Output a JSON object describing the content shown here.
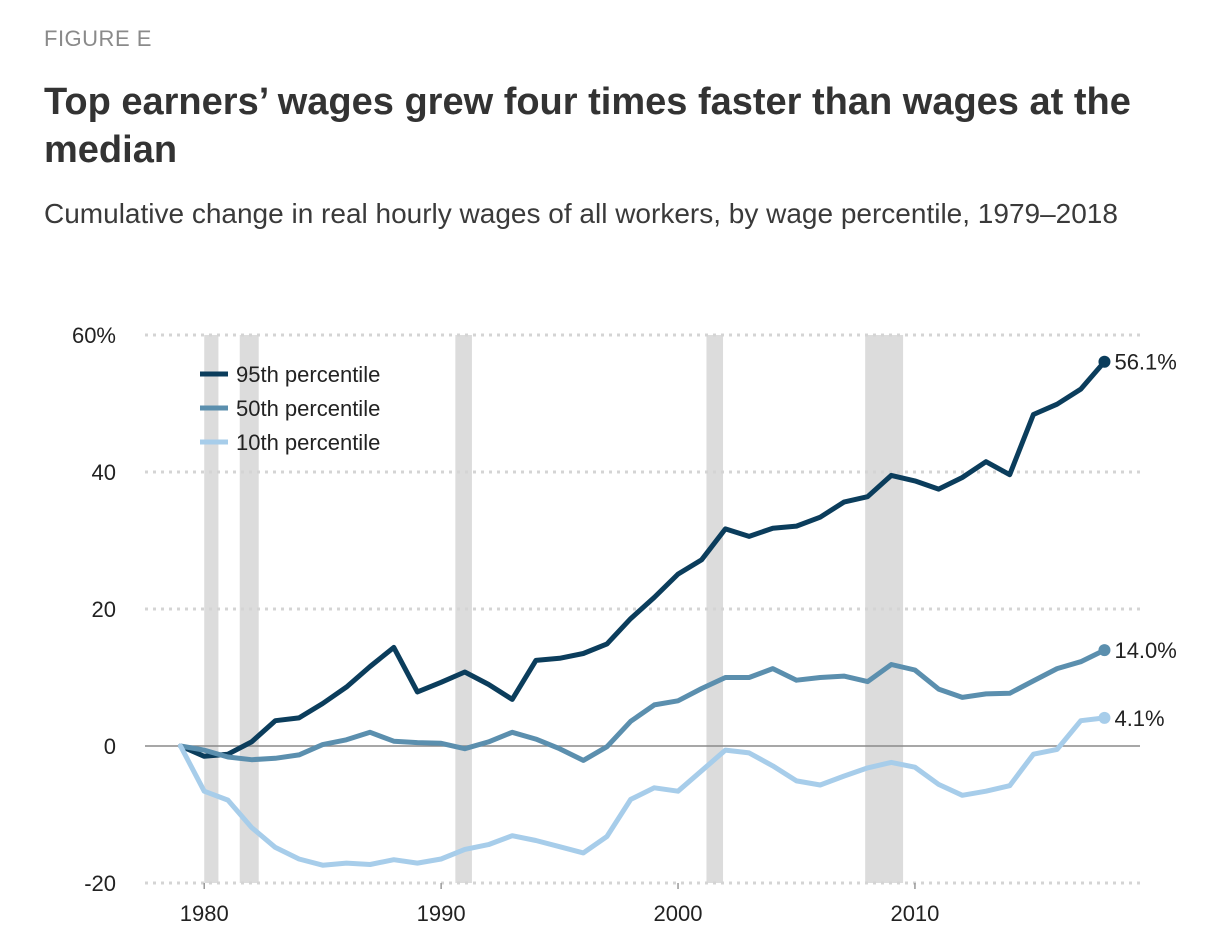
{
  "header": {
    "figure_label": "FIGURE E",
    "title": "Top earners’ wages grew four times faster than wages at the median",
    "subtitle": "Cumulative change in real hourly wages of all workers, by wage percentile, 1979–2018"
  },
  "chart_data": {
    "type": "line",
    "title": "Top earners’ wages grew four times faster than wages at the median",
    "subtitle": "Cumulative change in real hourly wages of all workers, by wage percentile, 1979–2018",
    "xlabel": "",
    "ylabel": "",
    "xlim": [
      1977.5,
      2019.5
    ],
    "ylim": [
      -20,
      60
    ],
    "x_ticks": [
      {
        "value": 1980,
        "label": "1980"
      },
      {
        "value": 1990,
        "label": "1990"
      },
      {
        "value": 2000,
        "label": "2000"
      },
      {
        "value": 2010,
        "label": "2010"
      }
    ],
    "y_ticks": [
      {
        "value": 60,
        "label": "60%"
      },
      {
        "value": 40,
        "label": "40"
      },
      {
        "value": 20,
        "label": "20"
      },
      {
        "value": 0,
        "label": "0"
      },
      {
        "value": -20,
        "label": "-20"
      }
    ],
    "grid": true,
    "legend_position": "top-left",
    "recessions": [
      {
        "start": 1980.0,
        "end": 1980.6
      },
      {
        "start": 1981.5,
        "end": 1982.3
      },
      {
        "start": 1990.6,
        "end": 1991.3
      },
      {
        "start": 2001.2,
        "end": 2001.9
      },
      {
        "start": 2007.9,
        "end": 2009.5
      }
    ],
    "x": [
      1979,
      1980,
      1981,
      1982,
      1983,
      1984,
      1985,
      1986,
      1987,
      1988,
      1989,
      1990,
      1991,
      1992,
      1993,
      1994,
      1995,
      1996,
      1997,
      1998,
      1999,
      2000,
      2001,
      2002,
      2003,
      2004,
      2005,
      2006,
      2007,
      2008,
      2009,
      2010,
      2011,
      2012,
      2013,
      2014,
      2015,
      2016,
      2017,
      2018
    ],
    "series": [
      {
        "name": "95th percentile",
        "color": "#0b3d5c",
        "end_label": "56.1%",
        "values": [
          0,
          -1.5,
          -1.2,
          0.6,
          3.7,
          4.1,
          6.2,
          8.6,
          11.6,
          14.4,
          7.9,
          9.3,
          10.8,
          9.0,
          6.8,
          12.5,
          12.8,
          13.5,
          14.9,
          18.6,
          21.7,
          25.1,
          27.2,
          31.7,
          30.6,
          31.8,
          32.1,
          33.4,
          35.6,
          36.4,
          39.5,
          38.7,
          37.5,
          39.2,
          41.5,
          39.6,
          48.4,
          49.9,
          52.1,
          56.1
        ]
      },
      {
        "name": "50th percentile",
        "color": "#5b8fae",
        "end_label": "14.0%",
        "values": [
          0,
          -0.6,
          -1.6,
          -2.0,
          -1.8,
          -1.3,
          0.2,
          0.9,
          2.0,
          0.7,
          0.5,
          0.4,
          -0.4,
          0.6,
          2.0,
          1.0,
          -0.4,
          -2.1,
          -0.1,
          3.6,
          6.0,
          6.6,
          8.4,
          10.0,
          10.0,
          11.3,
          9.6,
          10.0,
          10.2,
          9.4,
          11.9,
          11.1,
          8.3,
          7.1,
          7.6,
          7.7,
          9.5,
          11.3,
          12.3,
          14.0
        ]
      },
      {
        "name": "10th percentile",
        "color": "#a7cdea",
        "end_label": "4.1%",
        "values": [
          0,
          -6.6,
          -7.9,
          -11.9,
          -14.8,
          -16.5,
          -17.4,
          -17.1,
          -17.3,
          -16.6,
          -17.1,
          -16.5,
          -15.1,
          -14.4,
          -13.1,
          -13.8,
          -14.7,
          -15.6,
          -13.2,
          -7.8,
          -6.1,
          -6.6,
          -3.6,
          -0.6,
          -1.0,
          -2.9,
          -5.1,
          -5.7,
          -4.4,
          -3.2,
          -2.4,
          -3.1,
          -5.6,
          -7.2,
          -6.6,
          -5.8,
          -1.2,
          -0.5,
          3.7,
          4.1
        ]
      }
    ]
  }
}
